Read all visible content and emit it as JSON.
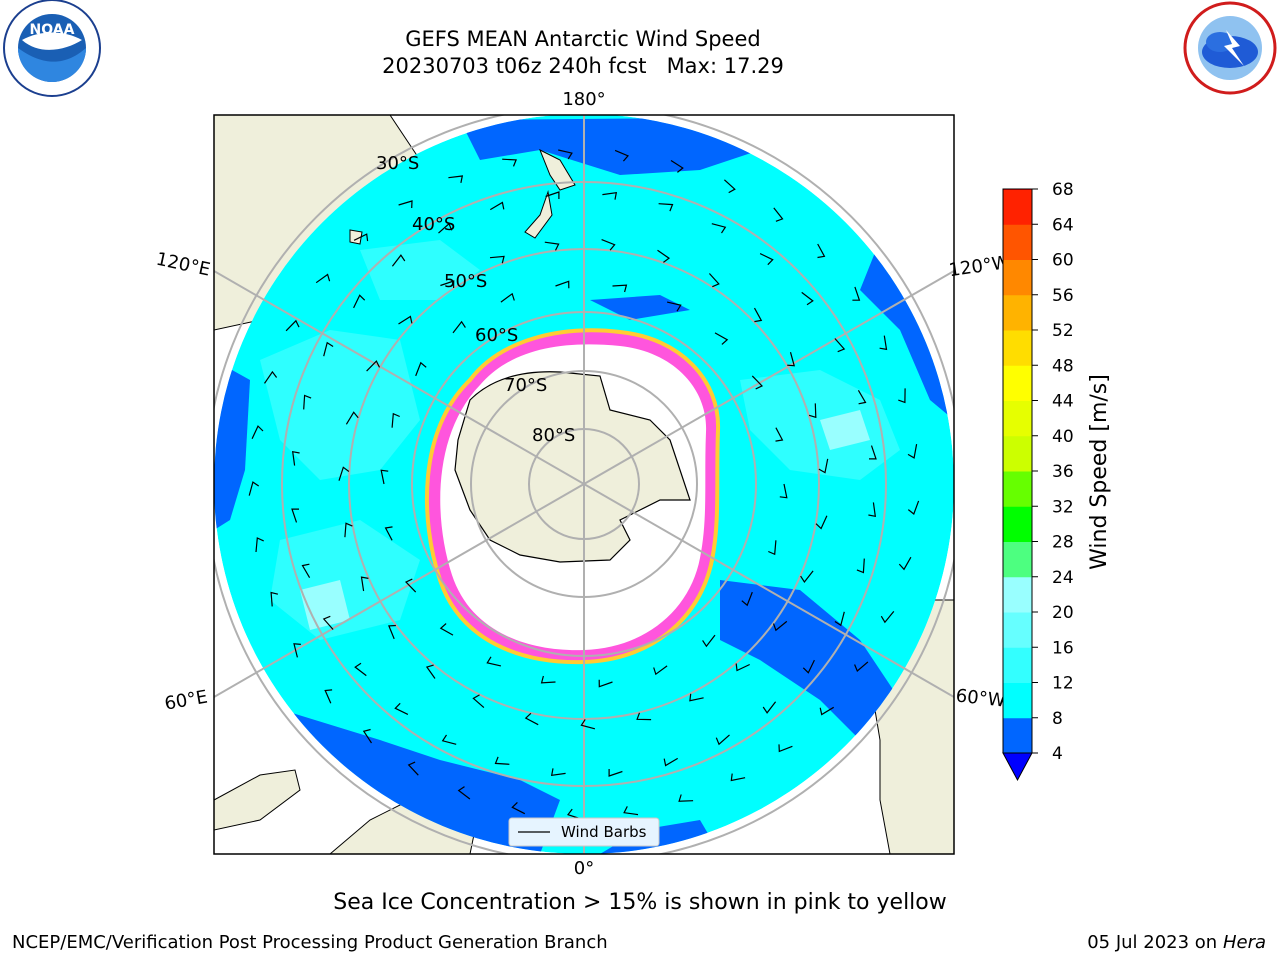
{
  "title": {
    "line1": "GEFS MEAN Antarctic Wind Speed",
    "line2": "20230703 t06z 240h fcst   Max: 17.29"
  },
  "caption": "Sea Ice Concentration > 15% is shown in pink to yellow",
  "footer": {
    "left": "NCEP/EMC/Verification Post Processing Product Generation Branch",
    "date": "05 Jul 2023 on",
    "machine": "Hera"
  },
  "map": {
    "projection": "south polar stereographic",
    "lon_labels": [
      "180°",
      "120°E",
      "120°W",
      "60°E",
      "60°W",
      "0°"
    ],
    "lat_labels": [
      "30°S",
      "40°S",
      "50°S",
      "60°S",
      "70°S",
      "80°S"
    ],
    "legend_label": "Wind Barbs"
  },
  "colorbar": {
    "label": "Wind Speed [m/s]",
    "ticks": [
      "4",
      "8",
      "12",
      "16",
      "20",
      "24",
      "28",
      "32",
      "36",
      "40",
      "44",
      "48",
      "52",
      "56",
      "60",
      "64",
      "68"
    ],
    "colors": [
      "#0066ff",
      "#00ffff",
      "#33ffff",
      "#66ffff",
      "#99ffff",
      "#4dff80",
      "#00ff00",
      "#66ff00",
      "#ccff00",
      "#e6ff00",
      "#ffff00",
      "#ffdd00",
      "#ffb300",
      "#ff8800",
      "#ff5500",
      "#ff2200",
      "#ff0000"
    ],
    "under_color": "#0000ff"
  },
  "logos": {
    "noaa": "NOAA",
    "nws": "NATIONAL WEATHER SERVICE"
  }
}
